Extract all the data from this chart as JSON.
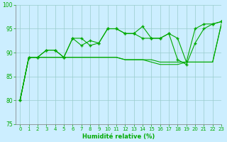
{
  "xlabel": "Humidité relative (%)",
  "background_color": "#cceeff",
  "grid_color": "#99cccc",
  "line_color": "#00aa00",
  "xlim": [
    -0.5,
    23
  ],
  "ylim": [
    75,
    100
  ],
  "yticks": [
    75,
    80,
    85,
    90,
    95,
    100
  ],
  "xticks": [
    0,
    1,
    2,
    3,
    4,
    5,
    6,
    7,
    8,
    9,
    10,
    11,
    12,
    13,
    14,
    15,
    16,
    17,
    18,
    19,
    20,
    21,
    22,
    23
  ],
  "series": [
    [
      80,
      89,
      89,
      90.5,
      90.5,
      89,
      93,
      93,
      91.5,
      92,
      95,
      95,
      94,
      94,
      95.5,
      93,
      93,
      94,
      93,
      88,
      95,
      96,
      96,
      96.5
    ],
    [
      80,
      89,
      89,
      89,
      89,
      89,
      89,
      89,
      89,
      89,
      89,
      89,
      88.5,
      88.5,
      88.5,
      88.5,
      88,
      88,
      88,
      88,
      88,
      88,
      88,
      96
    ],
    [
      80,
      89,
      89,
      89,
      89,
      89,
      89,
      89,
      89,
      89,
      89,
      89,
      88.5,
      88.5,
      88.5,
      88,
      87.5,
      87.5,
      87.5,
      88,
      88,
      88,
      88,
      96
    ],
    [
      80,
      89,
      89,
      90.5,
      90.5,
      89,
      93,
      91.5,
      92.5,
      92,
      95,
      95,
      94,
      94,
      93,
      93,
      93,
      94,
      88.5,
      87.5,
      92,
      95,
      96,
      96.5
    ]
  ]
}
